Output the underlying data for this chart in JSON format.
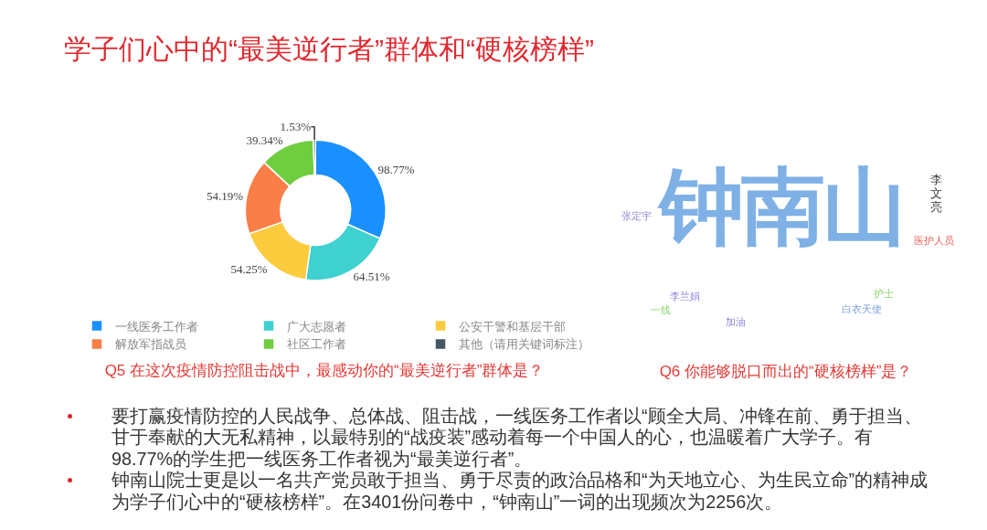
{
  "chart_data": [
    {
      "type": "other",
      "title": "学子们心中的“最美逆行者”群体和“硬核榜样”"
    },
    {
      "type": "donut",
      "title": "Q5 在这次疫情防控阻击战中，最感动你的“最美逆行者”群体是？",
      "categories": [
        "一线医务工作者",
        "广大志愿者",
        "公安干警和基层干部",
        "解放军指战员",
        "社区工作者",
        "其他（请用关键词标注）"
      ],
      "values": [
        98.77,
        64.51,
        54.25,
        54.19,
        39.34,
        1.53
      ],
      "value_labels": [
        "98.77%",
        "64.51%",
        "54.25%",
        "54.19%",
        "39.34%",
        "1.53%"
      ],
      "colors": [
        "#1a90ff",
        "#3fd0d0",
        "#fccb3e",
        "#fa7e47",
        "#6fcd3f",
        "#435766"
      ],
      "legend": "bottom"
    },
    {
      "type": "other",
      "title": "Q6 你能够脱口而出的“硬核榜样”是？",
      "annotations": [
        "钟南山",
        "李文亮",
        "张定宇",
        "医护人员",
        "李兰娟",
        "护士",
        "白衣天使",
        "一线",
        "加油"
      ],
      "colors": [
        "#7fb1e6",
        "#3a3a3a",
        "#8c86d6",
        "#e8605a",
        "#8a84d8",
        "#8fd16a",
        "#7f9fe0",
        "#8fd16a",
        "#8a84d8"
      ]
    },
    {
      "type": "other",
      "annotations": [
        "要打赢疫情防控的人民战争、总体战、阻击战，一线医务工作者以“顾全大局、冲锋在前、勇于担当、甘于奉献的大无私精神，以最特别的“战疫装”感动着每一个中国人的心，也温暖着广大学子。有98.77%的学生把一线医务工作者视为“最美逆行者”。",
        "钟南山院士更是以一名共产党员敢于担当、勇于尽责的政治品格和“为天地立心、为生民立命”的精神成为学子们心中的“硬核榜样”。在3401份问卷中，“钟南山”一词的出现频次为2256次。"
      ]
    }
  ]
}
